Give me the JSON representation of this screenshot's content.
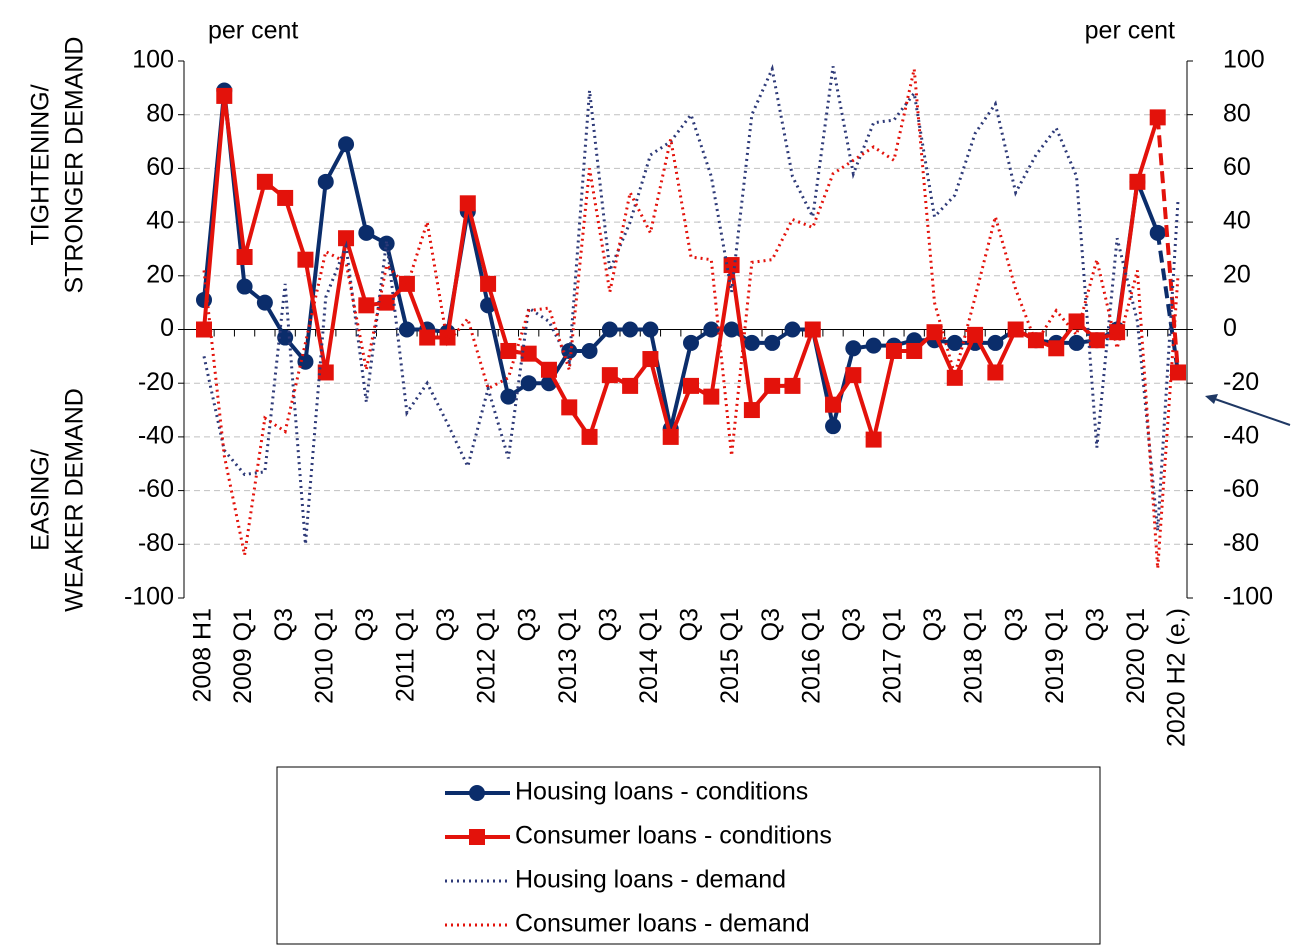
{
  "chart_data": {
    "type": "line",
    "unit_left": "per cent",
    "unit_right": "per cent",
    "y_label_top": [
      "TIGHTENING/",
      "STRONGER DEMAND"
    ],
    "y_label_bottom": [
      "EASING/",
      "WEAKER DEMAND"
    ],
    "categories": [
      "2008 H1",
      null,
      "2009 Q1",
      null,
      "Q3",
      null,
      "2010 Q1",
      null,
      "Q3",
      null,
      "2011 Q1",
      null,
      "Q3",
      null,
      "2012 Q1",
      null,
      "Q3",
      null,
      "2013 Q1",
      null,
      "Q3",
      null,
      "2014 Q1",
      null,
      "Q3",
      null,
      "2015 Q1",
      null,
      "Q3",
      null,
      "2016 Q1",
      null,
      "Q3",
      null,
      "2017 Q1",
      null,
      "Q3",
      null,
      "2018 Q1",
      null,
      "Q3",
      null,
      "2019 Q1",
      null,
      "Q3",
      null,
      "2020 Q1",
      null,
      "2020 H2 (e.)"
    ],
    "ylim": [
      -100,
      100
    ],
    "yticks": [
      -100,
      -80,
      -60,
      -40,
      -20,
      0,
      20,
      40,
      60,
      80,
      100
    ],
    "y2lim": [
      -100,
      100
    ],
    "y2ticks": [
      -100,
      -80,
      -60,
      -40,
      -20,
      0,
      20,
      40,
      60,
      80,
      100
    ],
    "grid": true,
    "series": [
      {
        "name": "Housing loans - conditions",
        "color": "#0b2d6b",
        "marker": "circle",
        "style": "solid",
        "values": [
          11,
          89,
          16,
          10,
          -3,
          -12,
          55,
          69,
          36,
          32,
          0,
          0,
          -1,
          44,
          9,
          -25,
          -20,
          -20,
          -8,
          -8,
          0,
          0,
          0,
          -37,
          -5,
          0,
          0,
          -5,
          -5,
          0,
          0,
          -36,
          -7,
          -6,
          -6,
          -4,
          -4,
          -5,
          -5,
          -5,
          0,
          -4,
          -5,
          -5,
          -4,
          0,
          55,
          36,
          -16
        ]
      },
      {
        "name": "Consumer loans - conditions",
        "color": "#e3120b",
        "marker": "square",
        "style": "solid",
        "values": [
          0,
          87,
          27,
          55,
          49,
          26,
          -16,
          34,
          9,
          10,
          17,
          -3,
          -3,
          47,
          17,
          -8,
          -9,
          -15,
          -29,
          -40,
          -17,
          -21,
          -11,
          -40,
          -21,
          -25,
          24,
          -30,
          -21,
          -21,
          0,
          -28,
          -17,
          -41,
          -8,
          -8,
          -1,
          -18,
          -2,
          -16,
          0,
          -4,
          -7,
          3,
          -4,
          -1,
          55,
          79,
          -16
        ]
      },
      {
        "name": "Housing loans - demand",
        "color": "#2e3a78",
        "marker": "none",
        "style": "dotted",
        "values": [
          -10,
          -45,
          -54,
          -53,
          17,
          -80,
          12,
          31,
          -27,
          33,
          -31,
          -20,
          -35,
          -51,
          -22,
          -48,
          8,
          3,
          -12,
          89,
          22,
          40,
          65,
          70,
          80,
          57,
          14,
          80,
          97,
          57,
          42,
          98,
          58,
          77,
          78,
          88,
          42,
          50,
          73,
          84,
          51,
          65,
          75,
          57,
          -44,
          34,
          3,
          -75,
          48
        ]
      },
      {
        "name": "Consumer loans - demand",
        "color": "#e3120b",
        "marker": "none",
        "style": "dotted",
        "values": [
          22,
          -47,
          -84,
          -33,
          -38,
          -5,
          29,
          25,
          -15,
          24,
          16,
          40,
          -5,
          4,
          -22,
          -18,
          7,
          8,
          -15,
          60,
          14,
          51,
          36,
          71,
          27,
          26,
          -47,
          25,
          26,
          41,
          38,
          58,
          63,
          68,
          63,
          97,
          10,
          -17,
          12,
          42,
          15,
          -5,
          7,
          -2,
          26,
          -7,
          22,
          -89,
          20
        ]
      }
    ]
  }
}
